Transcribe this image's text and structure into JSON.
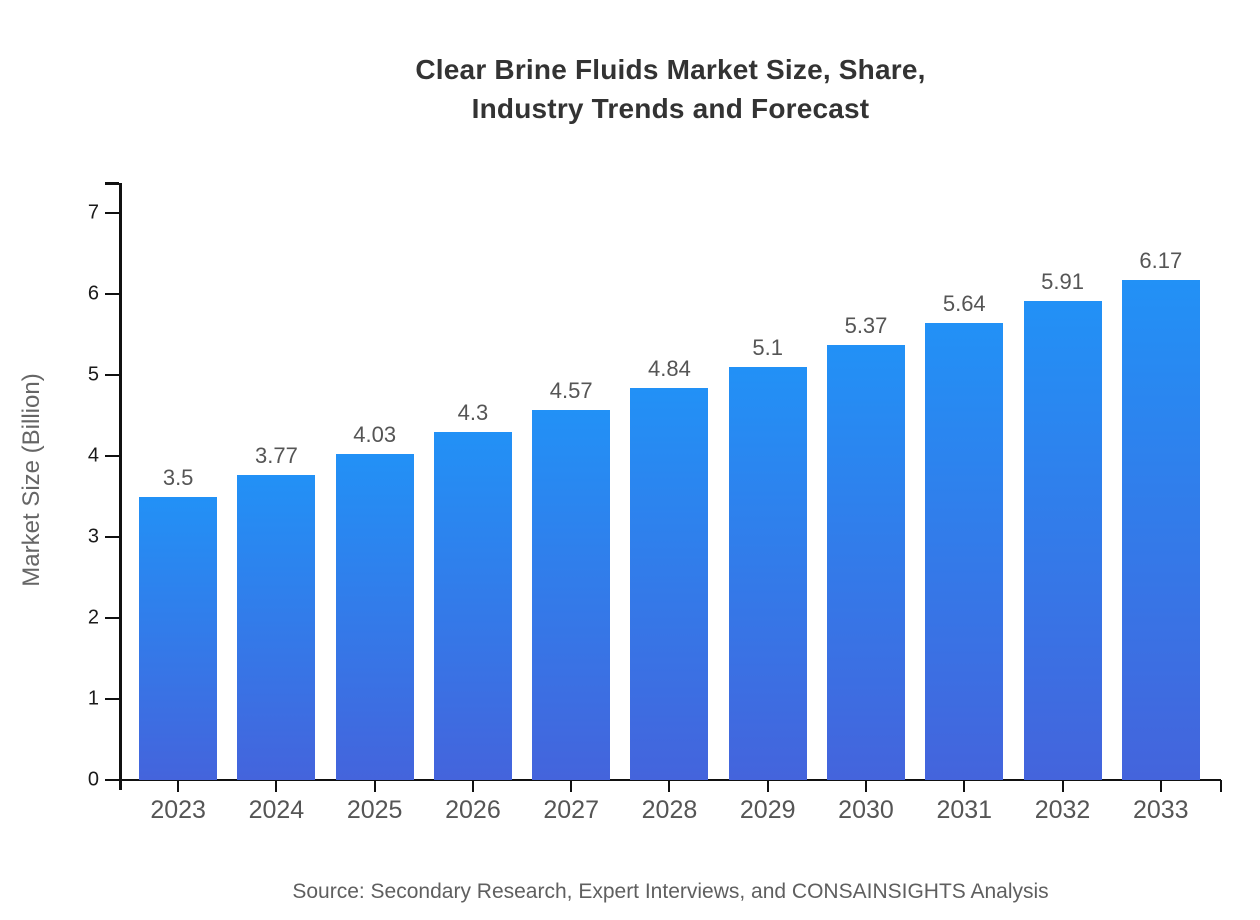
{
  "header": {
    "title_line1": "Clear Brine Fluids Market Size, Share,",
    "title_line2": "Industry Trends and Forecast"
  },
  "chart_data": {
    "type": "bar",
    "title": "Clear Brine Fluids Market Size, Share, Industry Trends and Forecast",
    "categories": [
      "2023",
      "2024",
      "2025",
      "2026",
      "2027",
      "2028",
      "2029",
      "2030",
      "2031",
      "2032",
      "2033"
    ],
    "values": [
      3.5,
      3.77,
      4.03,
      4.3,
      4.57,
      4.84,
      5.1,
      5.37,
      5.64,
      5.91,
      6.17
    ],
    "value_labels": [
      "3.5",
      "3.77",
      "4.03",
      "4.3",
      "4.57",
      "4.84",
      "5.1",
      "5.37",
      "5.64",
      "5.91",
      "6.17"
    ],
    "xlabel": "",
    "ylabel": "Market Size (Billion)",
    "ylim": [
      0,
      7.37
    ],
    "yticks": [
      0,
      1,
      2,
      3,
      4,
      5,
      6,
      7
    ],
    "grid": false,
    "legend": "none",
    "colors": {
      "bar_gradient_top": "#2291f6",
      "bar_gradient_bottom": "#4464dc",
      "axis": "#111111"
    }
  },
  "footer": {
    "source": "Source: Secondary Research, Expert Interviews, and CONSAINSIGHTS Analysis"
  }
}
